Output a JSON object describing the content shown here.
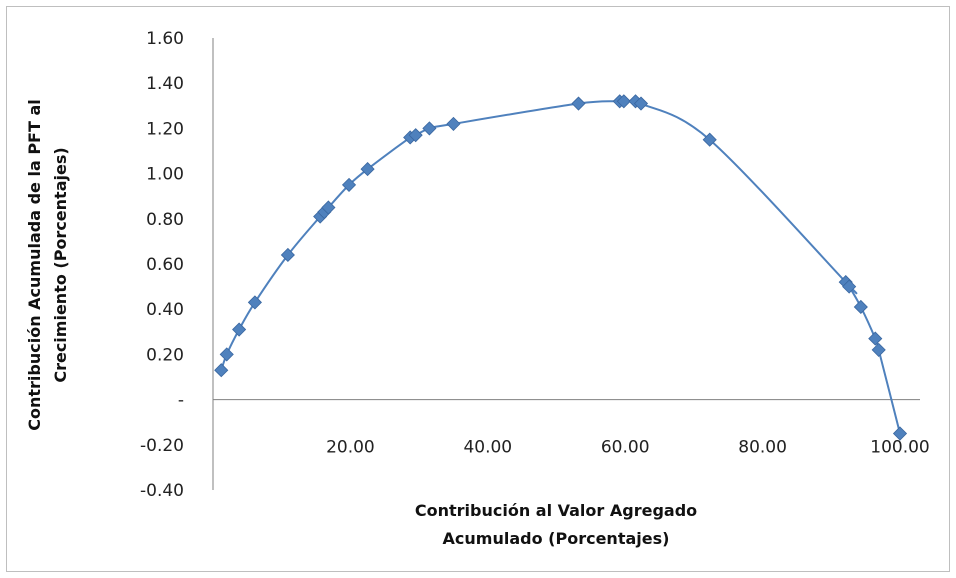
{
  "chart_data": {
    "type": "scatter",
    "title": "",
    "xlabel_lines": [
      "Contribución al  Valor Agregado",
      "Acumulado (Porcentajes)"
    ],
    "ylabel_lines": [
      "Contribución Acumulada de la PFT al",
      "Crecimiento (Porcentajes)"
    ],
    "xlim": [
      0,
      100
    ],
    "ylim": [
      -0.4,
      1.6
    ],
    "x_ticks": [
      20,
      40,
      60,
      80,
      100
    ],
    "x_tick_labels": [
      "20.00",
      "40.00",
      "60.00",
      "80.00",
      "100.00"
    ],
    "y_ticks": [
      1.6,
      1.4,
      1.2,
      1.0,
      0.8,
      0.6,
      0.4,
      0.2,
      0,
      -0.2,
      -0.4
    ],
    "y_tick_labels": [
      "1.60",
      "1.40",
      "1.20",
      "1.00",
      "0.80",
      "0.60",
      "0.40",
      "0.20",
      "-",
      "-0.20",
      "-0.40"
    ],
    "grid": false,
    "legend": "none",
    "series": [
      {
        "color": "#4f81bd",
        "marker": "diamond",
        "smooth_line": true,
        "points": [
          [
            1.2,
            0.13
          ],
          [
            2.0,
            0.2
          ],
          [
            3.8,
            0.31
          ],
          [
            6.1,
            0.43
          ],
          [
            10.9,
            0.64
          ],
          [
            15.6,
            0.81
          ],
          [
            16.2,
            0.83
          ],
          [
            16.8,
            0.85
          ],
          [
            19.8,
            0.95
          ],
          [
            22.5,
            1.02
          ],
          [
            28.7,
            1.16
          ],
          [
            29.5,
            1.17
          ],
          [
            31.5,
            1.2
          ],
          [
            35.0,
            1.22
          ],
          [
            53.2,
            1.31
          ],
          [
            59.2,
            1.32
          ],
          [
            59.8,
            1.32
          ],
          [
            61.5,
            1.32
          ],
          [
            62.3,
            1.31
          ],
          [
            72.3,
            1.15
          ],
          [
            92.1,
            0.52
          ],
          [
            92.6,
            0.5
          ],
          [
            94.3,
            0.41
          ],
          [
            96.4,
            0.27
          ],
          [
            96.9,
            0.22
          ],
          [
            100.0,
            -0.15
          ]
        ]
      }
    ]
  }
}
